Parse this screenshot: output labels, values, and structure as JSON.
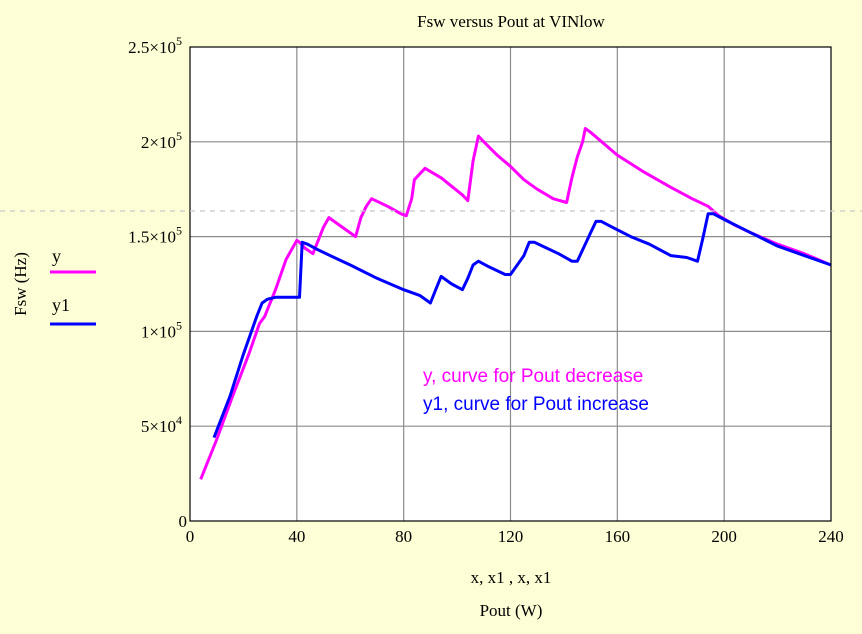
{
  "chart_data": {
    "type": "line",
    "title": "Fsw versus Pout at VINlow",
    "xlabel": "x, x1 , x, x1",
    "xlabel2": "Pout (W)",
    "ylabel": "Fsw (Hz)",
    "xlim": [
      0,
      240
    ],
    "ylim": [
      0,
      250000
    ],
    "grid": true,
    "legend_position": "left",
    "x_ticks": [
      {
        "value": 0,
        "label": "0"
      },
      {
        "value": 40,
        "label": "40"
      },
      {
        "value": 80,
        "label": "80"
      },
      {
        "value": 120,
        "label": "120"
      },
      {
        "value": 160,
        "label": "160"
      },
      {
        "value": 200,
        "label": "200"
      },
      {
        "value": 240,
        "label": "240"
      }
    ],
    "y_ticks": [
      {
        "value": 0,
        "mantissa": "0",
        "exp": ""
      },
      {
        "value": 50000,
        "mantissa": "5×10",
        "exp": "4"
      },
      {
        "value": 100000,
        "mantissa": "1×10",
        "exp": "5"
      },
      {
        "value": 150000,
        "mantissa": "1.5×10",
        "exp": "5"
      },
      {
        "value": 200000,
        "mantissa": "2×10",
        "exp": "5"
      },
      {
        "value": 250000,
        "mantissa": "2.5×10",
        "exp": "5"
      }
    ],
    "series": [
      {
        "name": "y",
        "color": "#ff00ff",
        "x": [
          4,
          10,
          16,
          22,
          26,
          28,
          32,
          36,
          40,
          41,
          43,
          46,
          48,
          50,
          52,
          57,
          62,
          64,
          66,
          68,
          74,
          79,
          81,
          83,
          84,
          88,
          94,
          102,
          104,
          106,
          108,
          110,
          115,
          120,
          125,
          130,
          136,
          141,
          143,
          145,
          147,
          148,
          150,
          160,
          170,
          180,
          188,
          194,
          198,
          204,
          210,
          220,
          230,
          240
        ],
        "y": [
          22000,
          43000,
          66000,
          88000,
          104000,
          108000,
          122000,
          138000,
          148000,
          147000,
          144000,
          141000,
          148000,
          155000,
          160000,
          155000,
          150000,
          160000,
          166000,
          170000,
          166000,
          162000,
          161000,
          170000,
          180000,
          186000,
          181000,
          172000,
          169000,
          190000,
          203000,
          200000,
          193000,
          187000,
          180000,
          175000,
          170000,
          168000,
          181000,
          192000,
          200000,
          207000,
          205000,
          193000,
          184000,
          176000,
          170000,
          166000,
          161000,
          156000,
          152000,
          146000,
          141000,
          135000
        ]
      },
      {
        "name": "y1",
        "color": "#0000ff",
        "x": [
          9,
          15,
          20,
          25,
          27,
          29,
          32,
          36,
          38,
          40,
          41,
          42,
          44,
          48,
          54,
          60,
          70,
          80,
          86,
          90,
          92,
          94,
          98,
          102,
          104,
          106,
          108,
          112,
          118,
          120,
          125,
          127,
          129,
          132,
          138,
          143,
          145,
          150,
          152,
          154,
          158,
          165,
          172,
          180,
          186,
          190,
          192,
          194,
          196,
          200,
          210,
          220,
          230,
          240
        ],
        "y": [
          44000,
          66000,
          88000,
          108000,
          115000,
          117000,
          118000,
          118000,
          118000,
          118000,
          118000,
          147000,
          146000,
          143000,
          139000,
          135000,
          128000,
          122000,
          119000,
          115000,
          122000,
          129000,
          125000,
          122000,
          128000,
          135000,
          137000,
          134000,
          130000,
          130000,
          140000,
          147000,
          147000,
          145000,
          141000,
          137000,
          137000,
          152000,
          158000,
          158000,
          155000,
          150000,
          146000,
          140000,
          139000,
          137000,
          149000,
          162000,
          162000,
          159000,
          152000,
          145000,
          140000,
          135000
        ]
      }
    ],
    "annotations": [
      {
        "text": "y, curve for Pout decrease",
        "color": "#ff00ff"
      },
      {
        "text": "y1, curve for Pout increase",
        "color": "#0000ff"
      }
    ]
  }
}
